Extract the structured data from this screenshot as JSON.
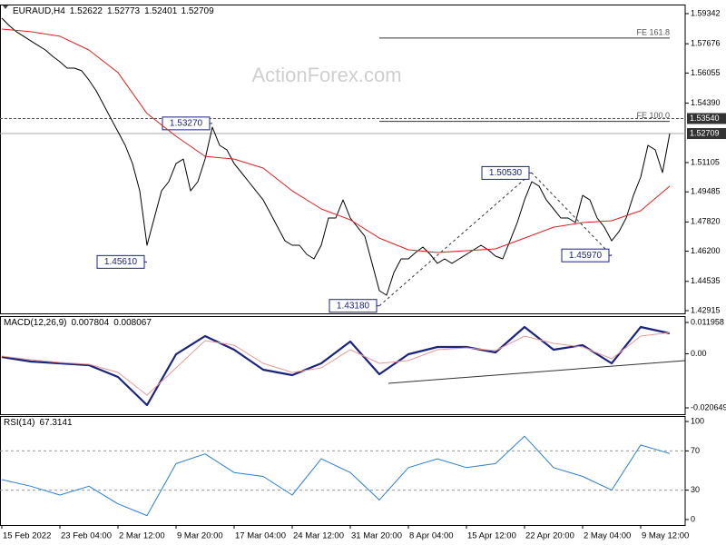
{
  "chart_data": [
    {
      "type": "line",
      "title": "EURAUD,H4",
      "ohlc": [
        1.52622,
        1.52773,
        1.52401,
        1.52709
      ],
      "watermark": "ActionForex.com",
      "xlim": [
        -0.25,
        94.125
      ],
      "ylim": [
        1.42764,
        1.59844
      ],
      "yticks": [
        1.59342,
        1.57676,
        1.56055,
        {
          "value": 1.5439,
          "label": "1.54390"
        },
        1.51105,
        1.49485,
        {
          "value": 1.4782,
          "label": "1.47820"
        },
        {
          "value": 1.462,
          "label": "1.46200"
        },
        1.44535,
        1.42915
      ],
      "series": [
        {
          "name": "EURAUD",
          "color": "#000000",
          "width": 1,
          "values": [
            1.5909,
            1.5869,
            1.5834,
            1.5809,
            1.5783,
            1.5758,
            1.5733,
            1.5698,
            1.5668,
            1.5633,
            1.5633,
            1.5618,
            1.5567,
            1.5507,
            1.5432,
            1.5356,
            1.5281,
            1.5206,
            1.5105,
            1.4954,
            1.4653,
            1.4804,
            1.4954,
            1.5005,
            1.5105,
            1.513,
            1.4954,
            1.5005,
            1.513,
            1.5306,
            1.5206,
            1.5181,
            1.5105,
            1.5055,
            1.5005,
            1.4954,
            1.4904,
            1.4829,
            1.4753,
            1.4678,
            1.4653,
            1.4653,
            1.4603,
            1.4578,
            1.4653,
            1.4804,
            1.4804,
            1.4904,
            1.4804,
            1.4753,
            1.4703,
            1.4553,
            1.4402,
            1.4377,
            1.4502,
            1.4578,
            1.4578,
            1.4613,
            1.4643,
            1.4603,
            1.4553,
            1.4578,
            1.4553,
            1.4578,
            1.4603,
            1.4628,
            1.4653,
            1.4628,
            1.4593,
            1.4578,
            1.4678,
            1.4779,
            1.4904,
            1.5005,
            1.498,
            1.4904,
            1.4854,
            1.4804,
            1.4804,
            1.4779,
            1.4929,
            1.4904,
            1.4804,
            1.4753,
            1.4678,
            1.4728,
            1.4804,
            1.4929,
            1.503,
            1.5206,
            1.5181,
            1.5055,
            1.5271
          ]
        },
        {
          "color": "#e02020",
          "width": 1,
          "x": [
            0,
            4,
            8,
            12,
            16,
            20,
            24,
            28,
            32,
            36,
            40,
            44,
            48,
            52,
            56,
            60,
            64,
            68,
            72,
            76,
            80,
            84,
            88,
            92
          ],
          "values": [
            1.5849,
            1.5834,
            1.5809,
            1.5733,
            1.5608,
            1.5382,
            1.5256,
            1.5145,
            1.513,
            1.508,
            1.4954,
            1.4854,
            1.4794,
            1.4693,
            1.4628,
            1.4613,
            1.4623,
            1.4633,
            1.4693,
            1.4753,
            1.4779,
            1.4789,
            1.4844,
            1.498
          ]
        }
      ],
      "hlines": [
        {
          "value": 1.5354,
          "label": "1.53540",
          "style": "dashed",
          "color": "#555555"
        },
        {
          "value": 1.52709,
          "label": "1.52709",
          "style": "solid",
          "color": "#aaaaaa"
        }
      ],
      "fe_levels": [
        {
          "label": "FE 161.8",
          "value": 1.5799,
          "x": [
            52,
            92
          ]
        },
        {
          "label": "FE 100.0",
          "value": 1.5338,
          "x": [
            52,
            92
          ]
        }
      ],
      "annotations": [
        {
          "text": "1.45610",
          "x": 20,
          "y": 1.4561
        },
        {
          "text": "1.53270",
          "x": 29,
          "y": 1.5327
        },
        {
          "text": "1.43180",
          "x": 52,
          "y": 1.4318
        },
        {
          "text": "1.50530",
          "x": 73,
          "y": 1.5053
        },
        {
          "text": "1.45970",
          "x": 84,
          "y": 1.4597
        }
      ]
    },
    {
      "type": "line",
      "title": "MACD(12,26,9)",
      "current": [
        0.007804,
        0.008067
      ],
      "xlim": [
        -0.25,
        94.125
      ],
      "ylim": [
        -0.02308,
        0.01439
      ],
      "yticks": [
        0.011958,
        {
          "value": 0,
          "label": "0.00"
        },
        -0.020649
      ],
      "series": [
        {
          "color": "#1a237e",
          "width": 2.2,
          "x": [
            0,
            4,
            8,
            12,
            16,
            20,
            24,
            28,
            32,
            36,
            40,
            44,
            48,
            52,
            56,
            60,
            64,
            68,
            72,
            76,
            80,
            84,
            88,
            92
          ],
          "values": [
            -0.00121,
            -0.00295,
            -0.00364,
            -0.00434,
            -0.00885,
            -0.0196,
            -0.00017,
            0.00677,
            0.00156,
            -0.00607,
            -0.00815,
            -0.00364,
            0.00468,
            -0.00781,
            -0.00017,
            0.0026,
            0.0026,
            0.00052,
            0.01023,
            0.00156,
            0.0033,
            -0.00364,
            0.01023,
            0.0078
          ]
        },
        {
          "color": "#e89a9a",
          "width": 1,
          "x": [
            0,
            4,
            8,
            12,
            16,
            20,
            24,
            28,
            32,
            36,
            40,
            44,
            48,
            52,
            56,
            60,
            64,
            68,
            72,
            76,
            80,
            84,
            88,
            92
          ],
          "values": [
            -0.00087,
            -0.00225,
            -0.0033,
            -0.00399,
            -0.00711,
            -0.01578,
            -0.00538,
            0.00503,
            0.0033,
            -0.00364,
            -0.00711,
            -0.00538,
            0.00156,
            -0.00364,
            -0.0026,
            0.00156,
            0.00225,
            0.00121,
            0.00677,
            0.00399,
            0.0026,
            -0.00191,
            0.00677,
            0.0081
          ]
        }
      ]
    },
    {
      "type": "line",
      "title": "RSI(14)",
      "current": 67.3141,
      "xlim": [
        -0.25,
        94.125
      ],
      "ylim": [
        -5.6,
        105.6
      ],
      "yticks": [
        100,
        70,
        30,
        0
      ],
      "levels": [
        70,
        30
      ],
      "xticks": [
        {
          "value": 0,
          "label": "15 Feb 2022"
        },
        {
          "value": 8,
          "label": "23 Feb 04:00"
        },
        {
          "value": 16,
          "label": "2 Mar 12:00"
        },
        {
          "value": 24,
          "label": "9 Mar 20:00"
        },
        {
          "value": 32,
          "label": "17 Mar 04:00"
        },
        {
          "value": 40,
          "label": "24 Mar 12:00"
        },
        {
          "value": 48,
          "label": "31 Mar 20:00"
        },
        {
          "value": 56,
          "label": "8 Apr 04:00"
        },
        {
          "value": 64,
          "label": "15 Apr 12:00"
        },
        {
          "value": 72,
          "label": "22 Apr 20:00"
        },
        {
          "value": 80,
          "label": "2 May 04:00"
        },
        {
          "value": 88,
          "label": "9 May 12:00"
        }
      ],
      "series": [
        {
          "color": "#2a7fd4",
          "width": 1,
          "x": [
            0,
            4,
            8,
            12,
            16,
            20,
            24,
            28,
            32,
            36,
            40,
            44,
            48,
            52,
            56,
            60,
            64,
            68,
            72,
            76,
            80,
            84,
            88,
            92
          ],
          "values": [
            40.7,
            34,
            25,
            34,
            16,
            4,
            57,
            67,
            48,
            44,
            25,
            62,
            48,
            20,
            53,
            62,
            53,
            57,
            85,
            53,
            44,
            30,
            76,
            67.3141
          ]
        }
      ]
    }
  ]
}
